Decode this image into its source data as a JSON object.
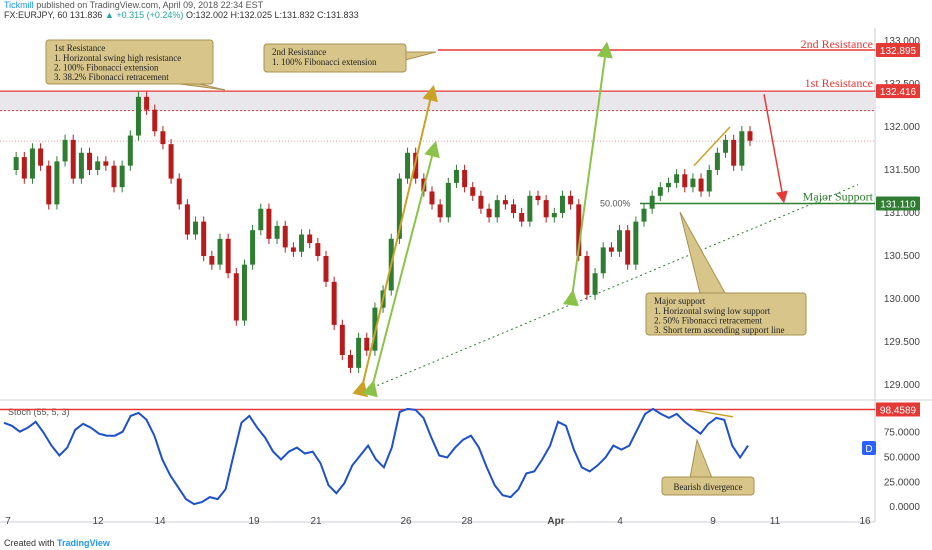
{
  "header": {
    "publisher": "Tickmill",
    "published_text": "published on TradingView.com, April 09, 2018 22:34 EST",
    "symbol": "FX:EURJPY, 60",
    "price": "131.836",
    "change": "▲ +0.315 (+0.24%)",
    "ohlc": "O:132.002  H:132.025  L:131.832  C:131.833"
  },
  "footer": {
    "created_with": "Created with",
    "brand": "TradingView"
  },
  "colors": {
    "resistance": "#e53935",
    "support": "#2e7d32",
    "candle_up": "#2e7d32",
    "candle_down": "#b71c1c",
    "stoch_line": "#1e50c8",
    "note_bg": "#d8c58a",
    "note_border": "#a89050",
    "arrow_gold": "#c9a227",
    "arrow_green": "#8bc34a"
  },
  "chart_data": {
    "type": "line",
    "price_axis": {
      "ylim": [
        128.85,
        133.15
      ],
      "ticks": [
        "133.000",
        "132.500",
        "132.000",
        "131.500",
        "131.000",
        "130.500",
        "130.000",
        "129.500",
        "129.000"
      ]
    },
    "x_ticks": [
      "7",
      "12",
      "14",
      "19",
      "21",
      "26",
      "28",
      "Apr",
      "4",
      "9",
      "11",
      "16"
    ],
    "price_path": [
      [
        0,
        131.5
      ],
      [
        1,
        131.65
      ],
      [
        2,
        131.4
      ],
      [
        3,
        131.75
      ],
      [
        4,
        131.55
      ],
      [
        5,
        131.1
      ],
      [
        6,
        131.6
      ],
      [
        7,
        131.85
      ],
      [
        8,
        131.4
      ],
      [
        9,
        131.7
      ],
      [
        10,
        131.5
      ],
      [
        11,
        131.6
      ],
      [
        12,
        131.55
      ],
      [
        13,
        131.3
      ],
      [
        14,
        131.55
      ],
      [
        15,
        131.9
      ],
      [
        16,
        132.35
      ],
      [
        17,
        132.2
      ],
      [
        18,
        131.95
      ],
      [
        19,
        131.8
      ],
      [
        20,
        131.4
      ],
      [
        21,
        131.1
      ],
      [
        22,
        130.75
      ],
      [
        23,
        130.9
      ],
      [
        24,
        130.5
      ],
      [
        25,
        130.4
      ],
      [
        26,
        130.7
      ],
      [
        27,
        130.3
      ],
      [
        28,
        129.75
      ],
      [
        29,
        130.4
      ],
      [
        30,
        130.8
      ],
      [
        31,
        131.05
      ],
      [
        32,
        130.7
      ],
      [
        33,
        130.85
      ],
      [
        34,
        130.6
      ],
      [
        35,
        130.55
      ],
      [
        36,
        130.75
      ],
      [
        37,
        130.65
      ],
      [
        38,
        130.5
      ],
      [
        39,
        130.2
      ],
      [
        40,
        129.7
      ],
      [
        41,
        129.35
      ],
      [
        42,
        129.2
      ],
      [
        43,
        129.55
      ],
      [
        44,
        129.4
      ],
      [
        45,
        129.9
      ],
      [
        46,
        130.1
      ],
      [
        47,
        130.7
      ],
      [
        48,
        131.4
      ],
      [
        49,
        131.7
      ],
      [
        50,
        131.4
      ],
      [
        51,
        131.25
      ],
      [
        52,
        131.1
      ],
      [
        53,
        130.95
      ],
      [
        54,
        131.35
      ],
      [
        55,
        131.5
      ],
      [
        56,
        131.3
      ],
      [
        57,
        131.2
      ],
      [
        58,
        131.05
      ],
      [
        59,
        130.95
      ],
      [
        60,
        131.15
      ],
      [
        61,
        131.1
      ],
      [
        62,
        131.0
      ],
      [
        63,
        130.9
      ],
      [
        64,
        131.2
      ],
      [
        65,
        131.15
      ],
      [
        66,
        130.95
      ],
      [
        67,
        131.0
      ],
      [
        68,
        131.2
      ],
      [
        69,
        131.1
      ],
      [
        70,
        130.5
      ],
      [
        71,
        130.05
      ],
      [
        72,
        130.3
      ],
      [
        73,
        130.6
      ],
      [
        74,
        130.55
      ],
      [
        75,
        130.8
      ],
      [
        76,
        130.4
      ],
      [
        77,
        130.9
      ],
      [
        78,
        131.05
      ],
      [
        79,
        131.2
      ],
      [
        80,
        131.3
      ],
      [
        81,
        131.35
      ],
      [
        82,
        131.45
      ],
      [
        83,
        131.3
      ],
      [
        84,
        131.4
      ],
      [
        85,
        131.25
      ],
      [
        86,
        131.5
      ],
      [
        87,
        131.7
      ],
      [
        88,
        131.85
      ],
      [
        89,
        131.55
      ],
      [
        90,
        131.95
      ],
      [
        91,
        131.84
      ]
    ],
    "levels": [
      {
        "name": "2nd Resistance",
        "value": 132.895,
        "label": "132.895"
      },
      {
        "name": "1st Resistance",
        "value": 132.416,
        "label": "132.416"
      },
      {
        "name": "Major Support",
        "value": 131.11,
        "label": "131.110"
      }
    ],
    "dotted_level": 132.19,
    "current_price": 131.836,
    "fib_label": "50.00%",
    "notes": [
      {
        "title": "1st Resistance",
        "lines": [
          "1. Horizontal swing high resistance",
          "2. 100% Fibonacci extension",
          "3. 38.2% Fibonacci retracement"
        ]
      },
      {
        "title": "2nd Resistance",
        "lines": [
          "1. 100% Fibonacci extension"
        ]
      },
      {
        "title": "Major support",
        "lines": [
          "1. Horizontal swing low support",
          "2. 50% Fibonacci retracement",
          "3. Short term ascending support line"
        ]
      }
    ],
    "stoch": {
      "label": "Stoch (55, 5, 3)",
      "ylim": [
        -5,
        105
      ],
      "ticks": [
        "75.0000",
        "50.0000",
        "25.0000",
        "0.0000"
      ],
      "level": 98.4589,
      "level_label": "98.4589",
      "divergence_label": "Bearish divergence",
      "badge": "D",
      "values": [
        85,
        82,
        76,
        80,
        86,
        75,
        62,
        52,
        60,
        78,
        84,
        80,
        74,
        72,
        72,
        76,
        92,
        95,
        88,
        72,
        48,
        32,
        20,
        8,
        3,
        5,
        10,
        8,
        18,
        52,
        85,
        92,
        80,
        70,
        56,
        48,
        56,
        60,
        54,
        56,
        44,
        22,
        14,
        24,
        42,
        52,
        62,
        48,
        40,
        60,
        96,
        99,
        98,
        90,
        70,
        52,
        50,
        60,
        68,
        72,
        60,
        40,
        22,
        12,
        10,
        18,
        34,
        36,
        48,
        62,
        86,
        82,
        58,
        40,
        36,
        42,
        50,
        62,
        58,
        62,
        78,
        94,
        99,
        94,
        90,
        94,
        86,
        80,
        74,
        84,
        90,
        88,
        62,
        50,
        62
      ]
    }
  }
}
